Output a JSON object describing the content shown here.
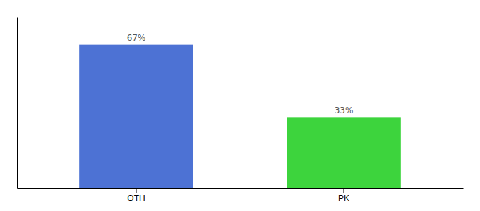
{
  "chart_data": {
    "type": "bar",
    "categories": [
      "OTH",
      "PK"
    ],
    "values": [
      67,
      33
    ],
    "value_labels": [
      "67%",
      "33%"
    ],
    "data_labels": true,
    "colors": [
      "#4d72d4",
      "#3dd43d"
    ],
    "ylim": [
      0,
      80
    ],
    "yticks": [],
    "tick_labels": "x"
  }
}
